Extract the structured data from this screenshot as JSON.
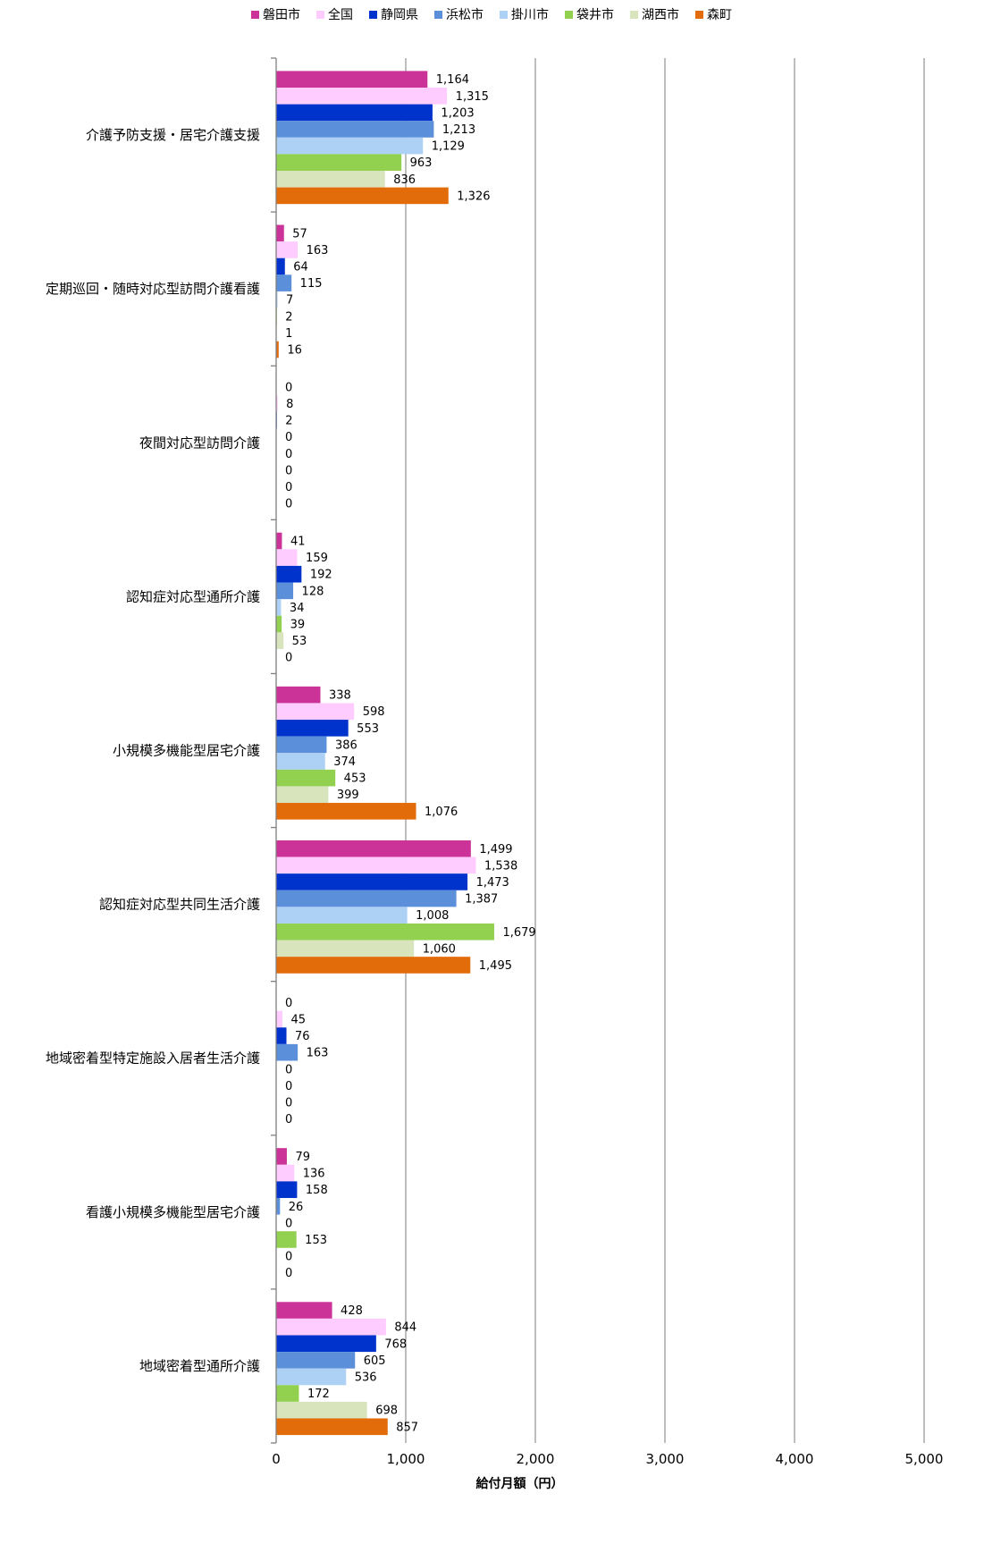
{
  "chart_data": {
    "type": "bar",
    "orientation": "horizontal",
    "xlabel": "給付月額（円）",
    "xlim": [
      0,
      5000
    ],
    "xticks": [
      0,
      1000,
      2000,
      3000,
      4000,
      5000
    ],
    "xtick_labels": [
      "0",
      "1,000",
      "2,000",
      "3,000",
      "4,000",
      "5,000"
    ],
    "grid": true,
    "legend_position": "top",
    "categories": [
      "介護予防支援・居宅介護支援",
      "定期巡回・随時対応型訪問介護看護",
      "夜間対応型訪問介護",
      "認知症対応型通所介護",
      "小規模多機能型居宅介護",
      "認知症対応型共同生活介護",
      "地域密着型特定施設入居者生活介護",
      "看護小規模多機能型居宅介護",
      "地域密着型通所介護"
    ],
    "series": [
      {
        "name": "磐田市",
        "color": "#CC3399",
        "values": [
          1164,
          57,
          0,
          41,
          338,
          1499,
          0,
          79,
          428
        ]
      },
      {
        "name": "全国",
        "color": "#FFCCFF",
        "values": [
          1315,
          163,
          8,
          159,
          598,
          1538,
          45,
          136,
          844
        ]
      },
      {
        "name": "静岡県",
        "color": "#0033CC",
        "values": [
          1203,
          64,
          2,
          192,
          553,
          1473,
          76,
          158,
          768
        ]
      },
      {
        "name": "浜松市",
        "color": "#5B8FD9",
        "values": [
          1213,
          115,
          0,
          128,
          386,
          1387,
          163,
          26,
          605
        ]
      },
      {
        "name": "掛川市",
        "color": "#ADD0F5",
        "values": [
          1129,
          7,
          0,
          34,
          374,
          1008,
          0,
          0,
          536
        ]
      },
      {
        "name": "袋井市",
        "color": "#92D050",
        "values": [
          963,
          2,
          0,
          39,
          453,
          1679,
          0,
          153,
          172
        ]
      },
      {
        "name": "湖西市",
        "color": "#D8E4BC",
        "values": [
          836,
          1,
          0,
          53,
          399,
          1060,
          0,
          0,
          698
        ]
      },
      {
        "name": "森町",
        "color": "#E36C0A",
        "values": [
          1326,
          16,
          0,
          0,
          1076,
          1495,
          0,
          0,
          857
        ]
      }
    ]
  }
}
